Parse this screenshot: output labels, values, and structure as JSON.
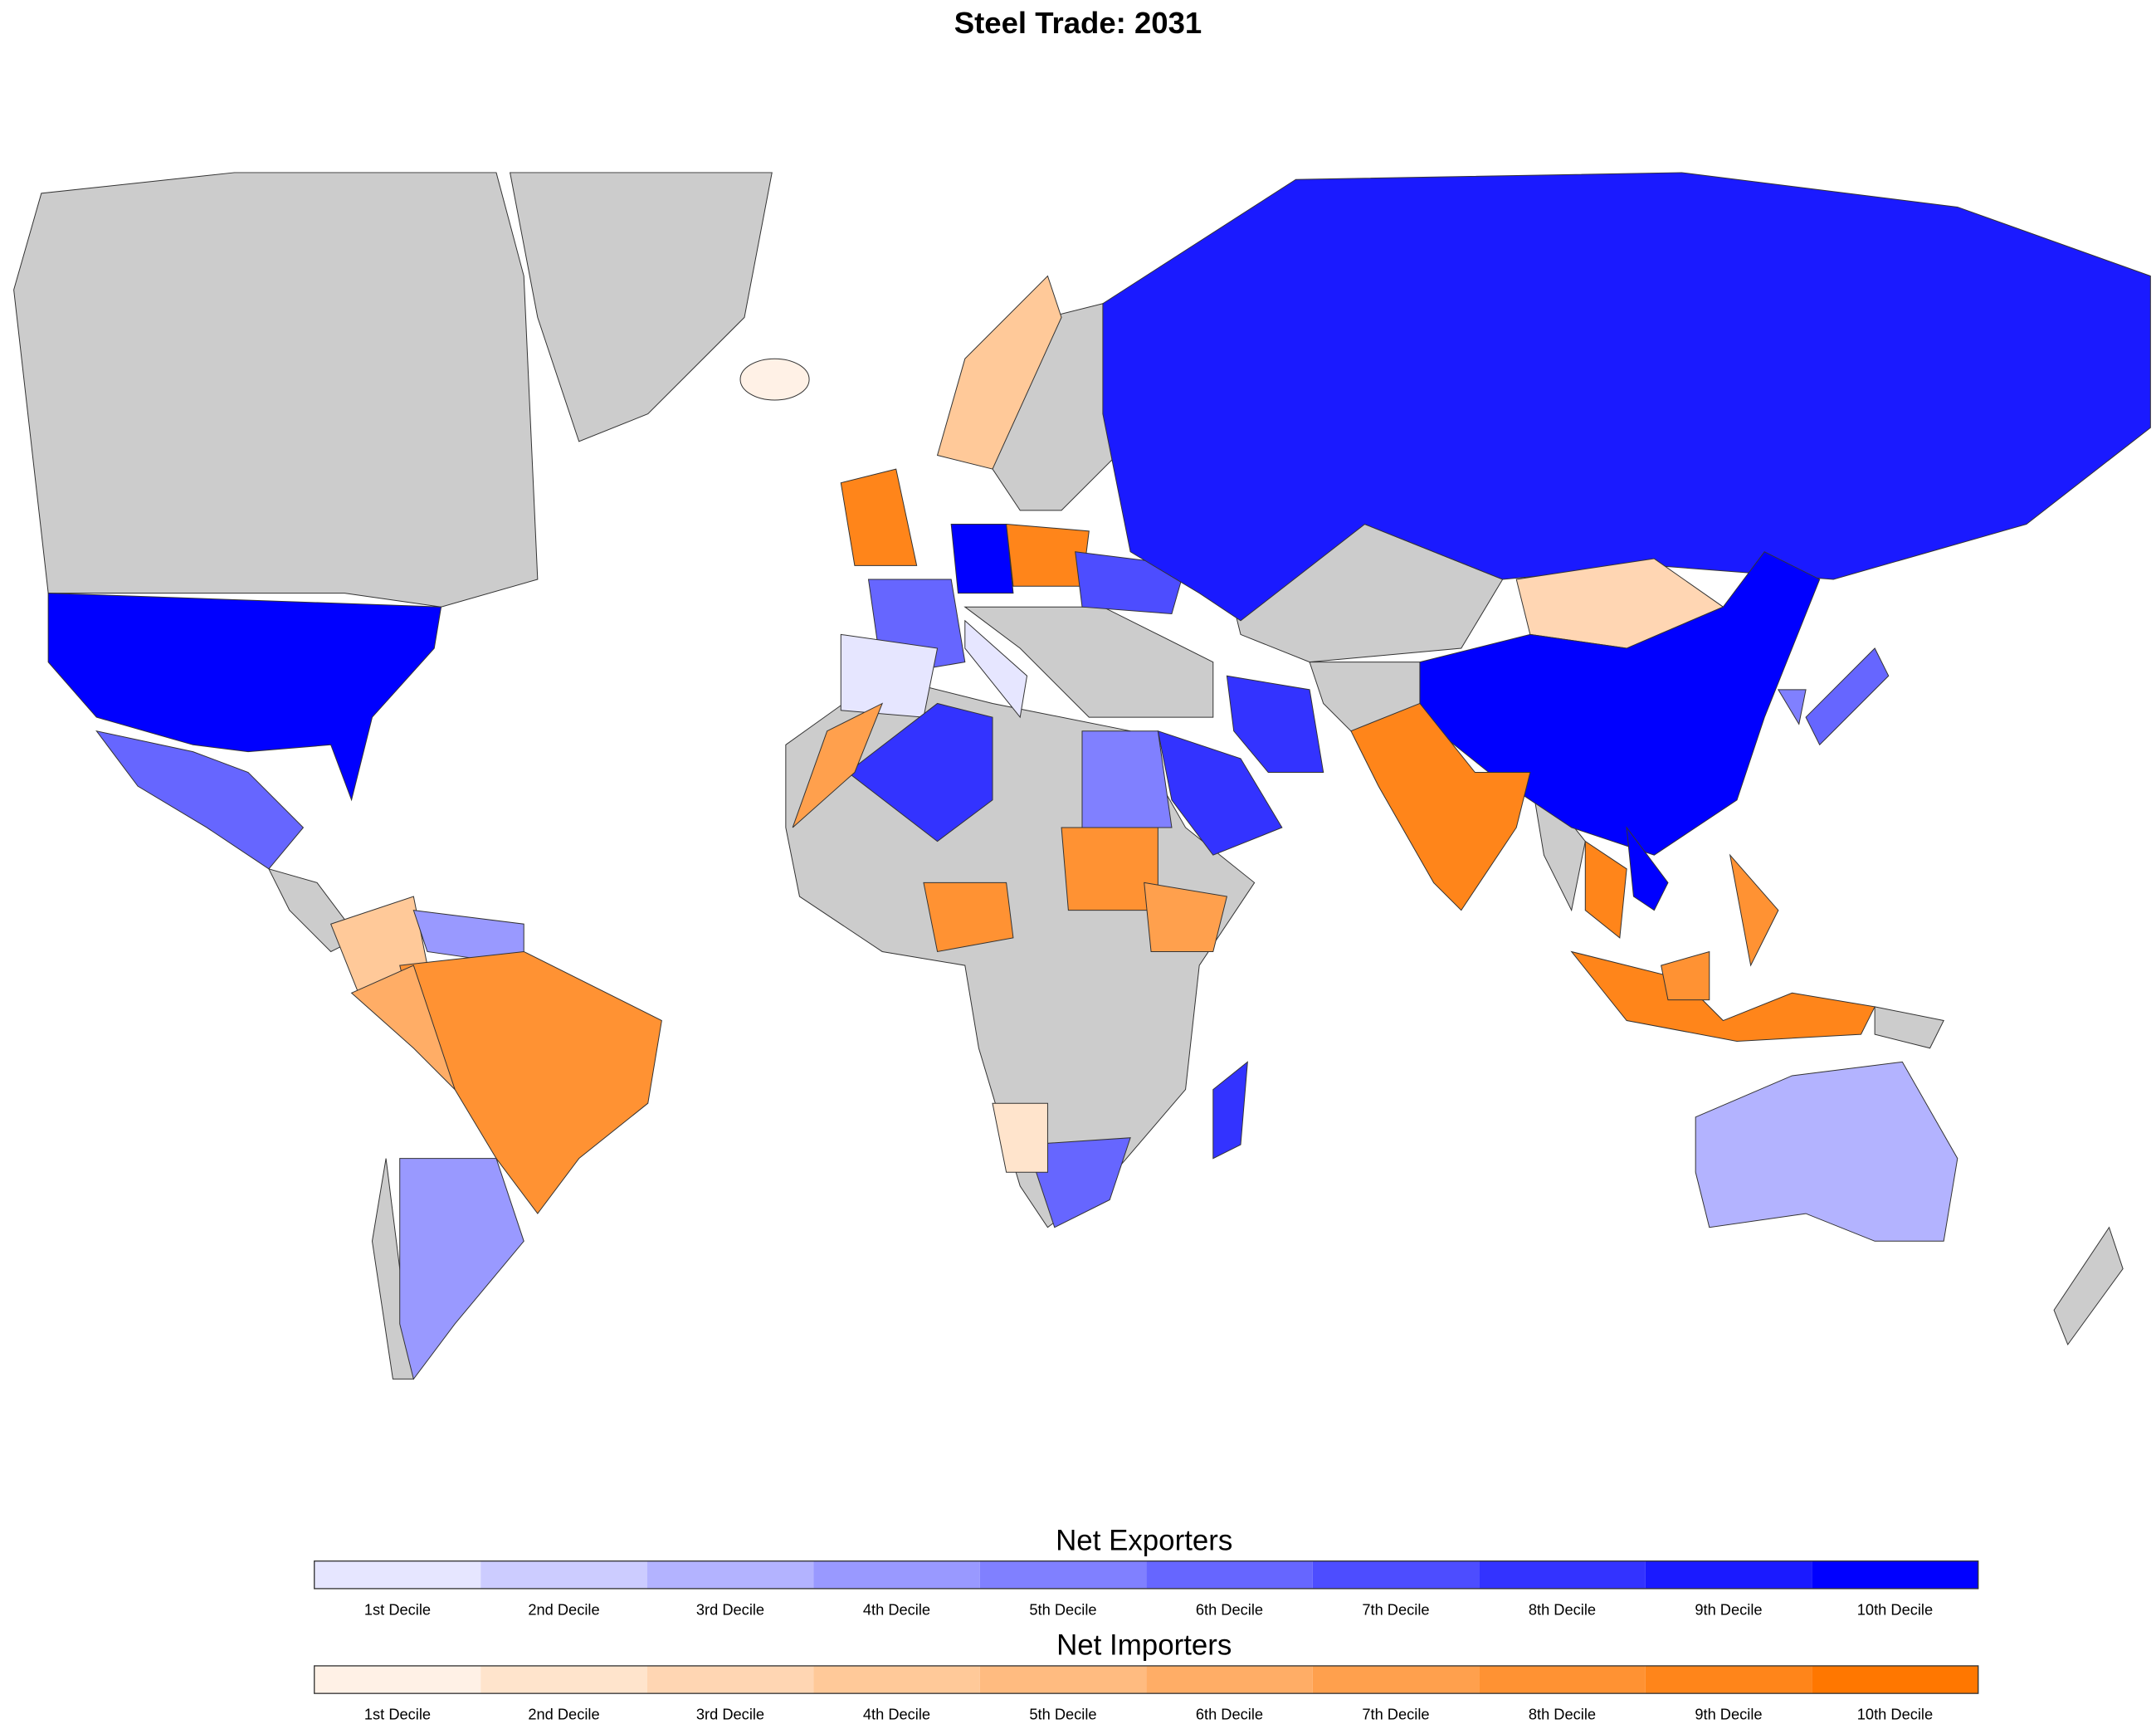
{
  "title": "Steel Trade: 2031",
  "legends": [
    {
      "title": "Net Exporters",
      "labels": [
        "1st Decile",
        "2nd Decile",
        "3rd Decile",
        "4th Decile",
        "5th Decile",
        "6th Decile",
        "7th Decile",
        "8th Decile",
        "9th Decile",
        "10th Decile"
      ],
      "colors": [
        "#e6e6ff",
        "#ccccff",
        "#b3b3ff",
        "#9999ff",
        "#8080ff",
        "#6666ff",
        "#4d4dff",
        "#3333ff",
        "#1a1aff",
        "#0000ff"
      ]
    },
    {
      "title": "Net Importers",
      "labels": [
        "1st Decile",
        "2nd Decile",
        "3rd Decile",
        "4th Decile",
        "5th Decile",
        "6th Decile",
        "7th Decile",
        "8th Decile",
        "9th Decile",
        "10th Decile"
      ],
      "colors": [
        "#fff1e6",
        "#ffe4cc",
        "#ffd6b3",
        "#ffc999",
        "#ffbb80",
        "#ffad66",
        "#ffa04d",
        "#ff9233",
        "#ff851a",
        "#ff7700"
      ]
    }
  ]
}
